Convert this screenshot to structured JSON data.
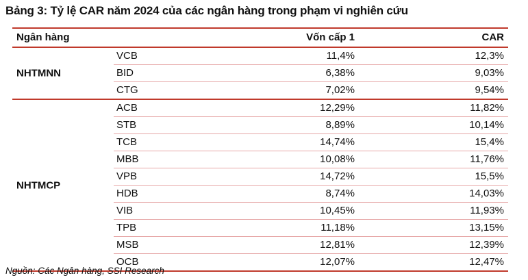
{
  "title": "Bảng 3: Tỷ lệ CAR năm 2024 của các ngân hàng trong phạm vi nghiên cứu",
  "header": {
    "bank": "Ngân hàng",
    "tier1": "Vốn cấp 1",
    "car": "CAR"
  },
  "groups": [
    {
      "label": "NHTMNN",
      "rows": [
        {
          "code": "VCB",
          "tier1": "11,4%",
          "car": "12,3%"
        },
        {
          "code": "BID",
          "tier1": "6,38%",
          "car": "9,03%"
        },
        {
          "code": "CTG",
          "tier1": "7,02%",
          "car": "9,54%"
        }
      ]
    },
    {
      "label": "NHTMCP",
      "rows": [
        {
          "code": "ACB",
          "tier1": "12,29%",
          "car": "11,82%"
        },
        {
          "code": "STB",
          "tier1": "8,89%",
          "car": "10,14%"
        },
        {
          "code": "TCB",
          "tier1": "14,74%",
          "car": "15,4%"
        },
        {
          "code": "MBB",
          "tier1": "10,08%",
          "car": "11,76%"
        },
        {
          "code": "VPB",
          "tier1": "14,72%",
          "car": "15,5%"
        },
        {
          "code": "HDB",
          "tier1": "8,74%",
          "car": "14,03%"
        },
        {
          "code": "VIB",
          "tier1": "10,45%",
          "car": "11,93%"
        },
        {
          "code": "TPB",
          "tier1": "11,18%",
          "car": "13,15%"
        },
        {
          "code": "MSB",
          "tier1": "12,81%",
          "car": "12,39%"
        },
        {
          "code": "OCB",
          "tier1": "12,07%",
          "car": "12,47%"
        }
      ]
    }
  ],
  "source": "Nguồn: Các Ngân hàng, SSI Research"
}
